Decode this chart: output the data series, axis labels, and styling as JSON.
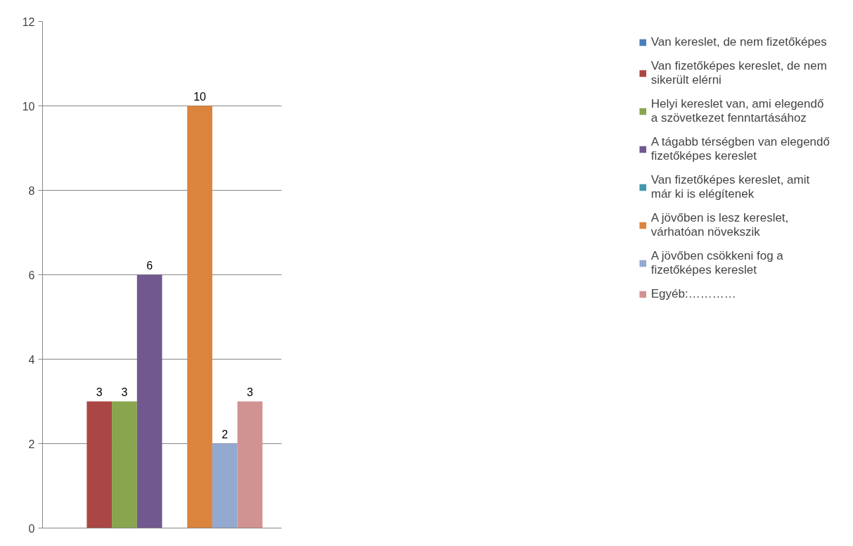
{
  "chart_data": {
    "type": "bar",
    "categories": [
      null
    ],
    "series": [
      {
        "name": "Van kereslet, de nem fizetőképes",
        "color": "#4a7ebb",
        "values": [
          0
        ],
        "value_labels": [
          null
        ]
      },
      {
        "name": "Van fizetőképes kereslet, de nem sikerült elérni",
        "color": "#aa4643",
        "values": [
          3
        ],
        "value_labels": [
          "3"
        ]
      },
      {
        "name": "Helyi kereslet van, ami elegendő a szövetkezet fenntartásához",
        "color": "#89a54e",
        "values": [
          3
        ],
        "value_labels": [
          "3"
        ]
      },
      {
        "name": "A tágabb térségben van elegendő fizetőképes kereslet",
        "color": "#71588f",
        "values": [
          6
        ],
        "value_labels": [
          "6"
        ]
      },
      {
        "name": "Van fizetőképes kereslet, amit már ki is elégítenek",
        "color": "#4198af",
        "values": [
          0
        ],
        "value_labels": [
          null
        ]
      },
      {
        "name": "A jövőben is lesz kereslet, várhatóan növekszik",
        "color": "#db843d",
        "values": [
          10
        ],
        "value_labels": [
          "10"
        ]
      },
      {
        "name": "A jövőben csökkeni fog a fizetőképes kereslet",
        "color": "#93a9cf",
        "values": [
          2
        ],
        "value_labels": [
          "2"
        ]
      },
      {
        "name": "Egyéb:…………",
        "color": "#d19392",
        "values": [
          3
        ],
        "value_labels": [
          "3"
        ]
      }
    ],
    "ylim": [
      0,
      12
    ],
    "yticks": [
      0,
      2,
      4,
      6,
      8,
      10,
      12
    ],
    "grid": "y",
    "legend": "right",
    "tick_labels": "y"
  }
}
